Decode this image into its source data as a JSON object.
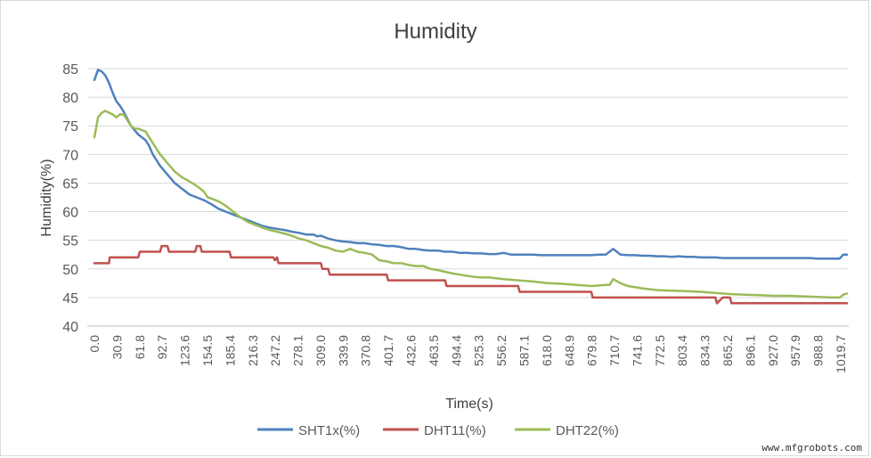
{
  "watermark": "www.mfgrobots.com",
  "chart_data": {
    "type": "line",
    "title": "Humidity",
    "xlabel": "Time(s)",
    "ylabel": "Humidity(%)",
    "ylim": [
      40,
      85
    ],
    "yticks": [
      40,
      45,
      50,
      55,
      60,
      65,
      70,
      75,
      80,
      85
    ],
    "xlim": [
      0,
      1030
    ],
    "xticks": [
      "0.0",
      "30.9",
      "61.8",
      "92.7",
      "123.6",
      "154.5",
      "185.4",
      "216.3",
      "247.2",
      "278.1",
      "309.0",
      "339.9",
      "370.8",
      "401.7",
      "432.6",
      "463.5",
      "494.4",
      "525.3",
      "556.2",
      "587.1",
      "618.0",
      "648.9",
      "679.8",
      "710.7",
      "741.6",
      "772.5",
      "803.4",
      "834.3",
      "865.2",
      "896.1",
      "927.0",
      "957.9",
      "988.8",
      "1019.7"
    ],
    "grid": true,
    "legend": "bottom",
    "series": [
      {
        "name": "SHT1x(%)",
        "color": "#4f81bd",
        "x": [
          0,
          5,
          10,
          15,
          20,
          25,
          30,
          35,
          40,
          50,
          60,
          70,
          75,
          80,
          90,
          100,
          110,
          120,
          130,
          140,
          150,
          160,
          170,
          180,
          190,
          200,
          210,
          220,
          230,
          240,
          250,
          260,
          270,
          280,
          290,
          300,
          305,
          310,
          320,
          330,
          340,
          350,
          360,
          370,
          380,
          390,
          400,
          410,
          420,
          430,
          440,
          450,
          460,
          470,
          480,
          490,
          500,
          510,
          520,
          530,
          540,
          550,
          560,
          570,
          580,
          590,
          600,
          610,
          620,
          630,
          640,
          650,
          660,
          670,
          680,
          690,
          700,
          705,
          710,
          715,
          720,
          730,
          740,
          750,
          760,
          770,
          780,
          790,
          800,
          810,
          820,
          830,
          840,
          850,
          860,
          870,
          880,
          890,
          900,
          910,
          920,
          930,
          940,
          950,
          960,
          970,
          980,
          990,
          1000,
          1010,
          1020,
          1025,
          1030
        ],
        "y": [
          83,
          84.8,
          84.5,
          83.8,
          82.5,
          80.8,
          79.3,
          78.5,
          77.5,
          75,
          73.5,
          72.5,
          71.5,
          70,
          68,
          66.5,
          65,
          64,
          63,
          62.5,
          62,
          61.3,
          60.5,
          60,
          59.5,
          59,
          58.5,
          58,
          57.5,
          57.2,
          57,
          56.8,
          56.5,
          56.3,
          56,
          56,
          55.7,
          55.8,
          55.3,
          55,
          54.8,
          54.7,
          54.5,
          54.5,
          54.3,
          54.2,
          54,
          54,
          53.8,
          53.5,
          53.5,
          53.3,
          53.2,
          53.2,
          53,
          53,
          52.8,
          52.8,
          52.7,
          52.7,
          52.6,
          52.6,
          52.8,
          52.5,
          52.5,
          52.5,
          52.5,
          52.4,
          52.4,
          52.4,
          52.4,
          52.4,
          52.4,
          52.4,
          52.4,
          52.5,
          52.5,
          53,
          53.5,
          53,
          52.5,
          52.4,
          52.4,
          52.3,
          52.3,
          52.2,
          52.2,
          52.1,
          52.2,
          52.1,
          52.1,
          52,
          52,
          52,
          51.9,
          51.9,
          51.9,
          51.9,
          51.9,
          51.9,
          51.9,
          51.9,
          51.9,
          51.9,
          51.9,
          51.9,
          51.9,
          51.8,
          51.8,
          51.8,
          51.8,
          52.5,
          52.5
        ]
      },
      {
        "name": "DHT11(%)",
        "color": "#c0504d",
        "x": [
          0,
          20,
          21,
          40,
          60,
          62,
          90,
          92,
          100,
          102,
          110,
          112,
          138,
          140,
          145,
          147,
          185,
          187,
          200,
          245,
          247,
          250,
          252,
          280,
          300,
          310,
          312,
          320,
          322,
          400,
          402,
          480,
          482,
          500,
          520,
          560,
          580,
          582,
          600,
          650,
          680,
          682,
          700,
          850,
          852,
          860,
          862,
          870,
          872,
          900,
          950,
          1030
        ],
        "y": [
          51,
          51,
          52,
          52,
          52,
          53,
          53,
          54,
          54,
          53,
          53,
          53,
          53,
          54,
          54,
          53,
          53,
          52,
          52,
          52,
          51.5,
          52,
          51,
          51,
          51,
          51,
          50,
          50,
          49,
          49,
          48,
          48,
          47,
          47,
          47,
          47,
          47,
          46,
          46,
          46,
          46,
          45,
          45,
          45,
          44,
          45,
          45,
          45,
          44,
          44,
          44,
          44
        ]
      },
      {
        "name": "DHT22(%)",
        "color": "#9bbb59",
        "x": [
          0,
          5,
          10,
          15,
          20,
          25,
          30,
          35,
          40,
          45,
          50,
          55,
          60,
          70,
          75,
          80,
          90,
          100,
          110,
          120,
          130,
          140,
          150,
          155,
          160,
          170,
          180,
          190,
          200,
          210,
          220,
          230,
          240,
          250,
          260,
          270,
          280,
          290,
          300,
          310,
          320,
          330,
          340,
          350,
          360,
          370,
          380,
          390,
          400,
          410,
          420,
          430,
          440,
          450,
          460,
          470,
          480,
          490,
          500,
          510,
          520,
          530,
          540,
          560,
          580,
          600,
          620,
          640,
          660,
          680,
          700,
          705,
          710,
          720,
          730,
          750,
          770,
          790,
          810,
          830,
          850,
          870,
          890,
          910,
          930,
          950,
          970,
          990,
          1010,
          1020,
          1025,
          1030
        ],
        "y": [
          73,
          76.5,
          77.3,
          77.6,
          77.3,
          77,
          76.5,
          77,
          77,
          76,
          75,
          74.5,
          74.5,
          74,
          73,
          72,
          70,
          68.5,
          67,
          66,
          65.3,
          64.5,
          63.5,
          62.5,
          62.3,
          61.8,
          61,
          60,
          59,
          58.2,
          57.7,
          57.2,
          56.8,
          56.5,
          56.2,
          55.8,
          55.3,
          55,
          54.5,
          54,
          53.7,
          53.2,
          53,
          53.5,
          53,
          52.8,
          52.5,
          51.5,
          51.3,
          51,
          51,
          50.7,
          50.5,
          50.5,
          50,
          49.8,
          49.5,
          49.2,
          49,
          48.8,
          48.6,
          48.5,
          48.5,
          48.2,
          48,
          47.8,
          47.5,
          47.4,
          47.2,
          47,
          47.2,
          47.2,
          48.2,
          47.5,
          47,
          46.6,
          46.3,
          46.2,
          46.1,
          46,
          45.8,
          45.6,
          45.5,
          45.4,
          45.3,
          45.3,
          45.2,
          45.1,
          45,
          45,
          45.5,
          45.7
        ]
      }
    ]
  }
}
